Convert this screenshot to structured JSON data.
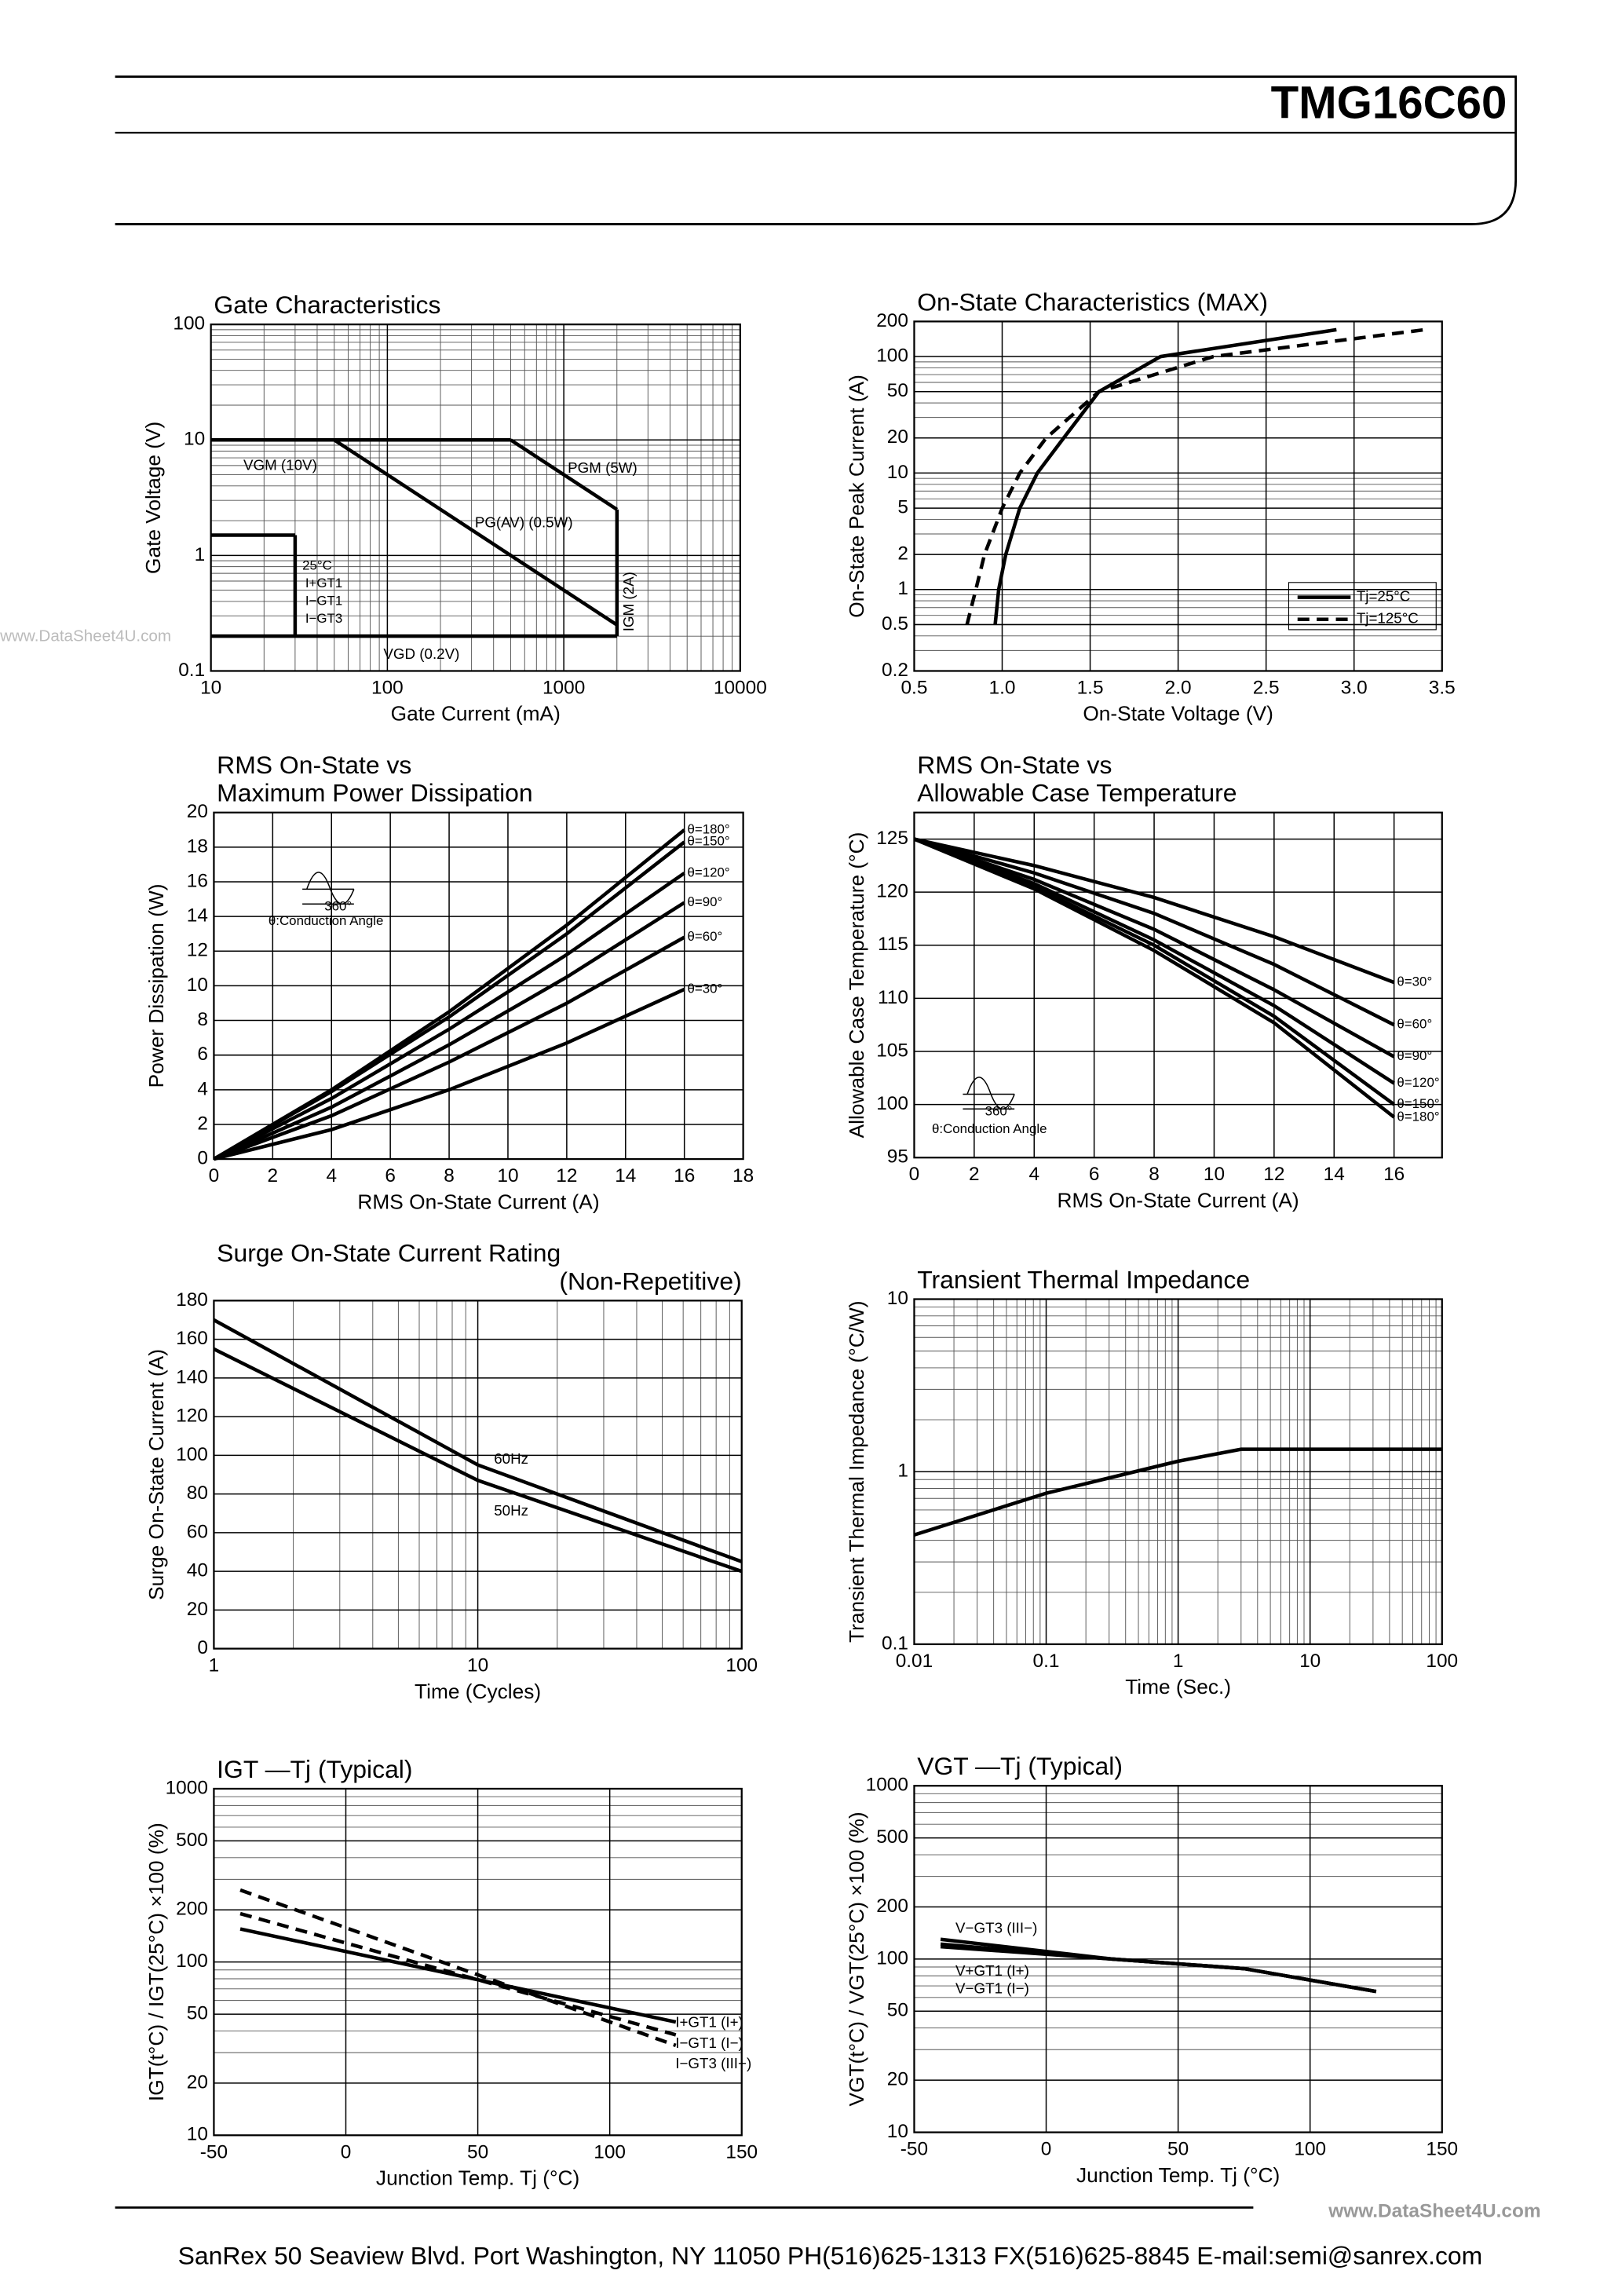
{
  "header": {
    "title": "TMG16C60"
  },
  "footer": {
    "address": "SanRex 50 Seaview Blvd. Port Washington, NY 11050 PH(516)625-1313 FX(516)625-8845 E-mail:semi@sanrex.com"
  },
  "watermark": {
    "left": "www.DataSheet4U.com",
    "bottom": "www.DataSheet4U.com"
  },
  "chart_data": [
    {
      "type": "line",
      "title": "Gate Characteristics",
      "x_label": "Gate Current (mA)",
      "y_label": "Gate Voltage (V)",
      "xscale": "log",
      "yscale": "log",
      "grid": true,
      "xlim": [
        10,
        10000
      ],
      "ylim": [
        0.1,
        100
      ],
      "xticks": [
        10,
        100,
        1000,
        10000
      ],
      "yticks": [
        0.1,
        1,
        10,
        100
      ],
      "series": [
        {
          "name": "VGM (10V)",
          "color": "#000000",
          "x": [
            10,
            500
          ],
          "values": [
            10,
            10
          ]
        },
        {
          "name": "PGM (5W)",
          "color": "#000000",
          "x": [
            500,
            2000
          ],
          "values": [
            10,
            2.5
          ]
        },
        {
          "name": "PG(AV) (0.5W)",
          "color": "#000000",
          "x": [
            50,
            2000
          ],
          "values": [
            10,
            0.25
          ]
        },
        {
          "name": "IGM (2A)",
          "color": "#000000",
          "x": [
            2000,
            2000
          ],
          "values": [
            2.5,
            0.2
          ]
        },
        {
          "name": "VGD (0.2V)",
          "color": "#000000",
          "x": [
            10,
            2000
          ],
          "values": [
            0.2,
            0.2
          ]
        },
        {
          "color": "#000000",
          "x": [
            10,
            30
          ],
          "values": [
            1.5,
            1.5
          ]
        },
        {
          "color": "#000000",
          "x": [
            30,
            30
          ],
          "values": [
            1.5,
            0.2
          ]
        }
      ],
      "annotations": [
        "25°C",
        "I+GT1",
        "I−GT1",
        "I−GT3"
      ]
    },
    {
      "type": "line",
      "title": "On-State Characteristics (MAX)",
      "x_label": "On-State Voltage (V)",
      "y_label": "On-State Peak Current (A)",
      "yscale": "log",
      "grid": true,
      "xlim": [
        0.5,
        3.5
      ],
      "ylim": [
        0.2,
        200
      ],
      "xticks": [
        0.5,
        {
          "value": 1,
          "label": "1.0"
        },
        1.5,
        {
          "value": 2,
          "label": "2.0"
        },
        2.5,
        {
          "value": 3,
          "label": "3.0"
        },
        3.5
      ],
      "yticks": [
        0.2,
        0.5,
        1,
        2,
        5,
        10,
        20,
        50,
        100,
        200
      ],
      "legend": "lower right",
      "series": [
        {
          "name": "Tj=25°C",
          "color": "#000000",
          "style": "solid",
          "x": [
            0.96,
            0.98,
            1.02,
            1.1,
            1.2,
            1.35,
            1.55,
            1.9,
            2.9
          ],
          "values": [
            0.5,
            1,
            2,
            5,
            10,
            20,
            50,
            100,
            170
          ]
        },
        {
          "name": "Tj=125°C",
          "color": "#000000",
          "style": "dashed",
          "x": [
            0.8,
            0.85,
            0.9,
            1.0,
            1.1,
            1.25,
            1.55,
            2.2,
            3.4
          ],
          "values": [
            0.5,
            1,
            2,
            5,
            10,
            20,
            50,
            100,
            170
          ]
        }
      ]
    },
    {
      "type": "line",
      "title": [
        "RMS On-State vs",
        "Maximum Power Dissipation"
      ],
      "x_label": "RMS On-State Current (A)",
      "y_label": "Power Dissipation (W)",
      "grid": true,
      "xlim": [
        0,
        18
      ],
      "ylim": [
        0,
        20
      ],
      "xticks": [
        0,
        2,
        4,
        6,
        8,
        10,
        12,
        14,
        16,
        18
      ],
      "yticks": [
        0,
        2,
        4,
        6,
        8,
        10,
        12,
        14,
        16,
        18,
        20
      ],
      "series": [
        {
          "name": "θ=180°",
          "color": "#000000",
          "x": [
            0,
            4,
            8,
            12,
            16
          ],
          "values": [
            0,
            4.0,
            8.5,
            13.5,
            19.0
          ]
        },
        {
          "name": "θ=150°",
          "color": "#000000",
          "x": [
            0,
            4,
            8,
            12,
            16
          ],
          "values": [
            0,
            3.9,
            8.2,
            13.0,
            18.3
          ]
        },
        {
          "name": "θ=120°",
          "color": "#000000",
          "x": [
            0,
            4,
            8,
            12,
            16
          ],
          "values": [
            0,
            3.5,
            7.5,
            11.8,
            16.5
          ]
        },
        {
          "name": "θ=90°",
          "color": "#000000",
          "x": [
            0,
            4,
            8,
            12,
            16
          ],
          "values": [
            0,
            3.0,
            6.6,
            10.5,
            14.8
          ]
        },
        {
          "name": "θ=60°",
          "color": "#000000",
          "x": [
            0,
            4,
            8,
            12,
            16
          ],
          "values": [
            0,
            2.5,
            5.6,
            9.0,
            12.8
          ]
        },
        {
          "name": "θ=30°",
          "color": "#000000",
          "x": [
            0,
            4,
            8,
            12,
            16
          ],
          "values": [
            0,
            1.7,
            4.0,
            6.7,
            9.8
          ]
        }
      ],
      "annotations": [
        "360°",
        "θ:Conduction Angle"
      ]
    },
    {
      "type": "line",
      "title": [
        "RMS On-State vs",
        "Allowable Case Temperature"
      ],
      "x_label": "RMS On-State Current (A)",
      "y_label": "Allowable Case Temperature (°C)",
      "grid": true,
      "xlim": [
        0,
        17.6
      ],
      "ylim": [
        95,
        127.5
      ],
      "xticks": [
        0,
        2,
        4,
        6,
        8,
        10,
        12,
        14,
        16
      ],
      "yticks": [
        95,
        100,
        105,
        110,
        115,
        120,
        125
      ],
      "series": [
        {
          "name": "θ=30°",
          "color": "#000000",
          "x": [
            0,
            4,
            8,
            12,
            16
          ],
          "values": [
            125,
            122.5,
            119.5,
            115.8,
            111.5
          ]
        },
        {
          "name": "θ=60°",
          "color": "#000000",
          "x": [
            0,
            4,
            8,
            12,
            16
          ],
          "values": [
            125,
            121.8,
            118,
            113.2,
            107.5
          ]
        },
        {
          "name": "θ=90°",
          "color": "#000000",
          "x": [
            0,
            4,
            8,
            12,
            16
          ],
          "values": [
            125,
            121.2,
            116.5,
            110.8,
            104.5
          ]
        },
        {
          "name": "θ=120°",
          "color": "#000000",
          "x": [
            0,
            4,
            8,
            12,
            16
          ],
          "values": [
            125,
            120.8,
            115.5,
            109.3,
            102
          ]
        },
        {
          "name": "θ=150°",
          "color": "#000000",
          "x": [
            0,
            4,
            8,
            12,
            16
          ],
          "values": [
            125,
            120.5,
            115,
            108.3,
            100
          ]
        },
        {
          "name": "θ=180°",
          "color": "#000000",
          "x": [
            0,
            4,
            8,
            12,
            16
          ],
          "values": [
            125,
            120.3,
            114.5,
            107.7,
            98.8
          ]
        }
      ],
      "annotations": [
        "360°",
        "θ:Conduction Angle"
      ]
    },
    {
      "type": "line",
      "title": [
        "Surge On-State Current Rating",
        "(Non-Repetitive)"
      ],
      "x_label": "Time (Cycles)",
      "y_label": "Surge On-State Current (A)",
      "xscale": "log",
      "grid": true,
      "xlim": [
        1,
        100
      ],
      "ylim": [
        0,
        180
      ],
      "xticks": [
        1,
        10,
        100
      ],
      "yticks": [
        0,
        20,
        40,
        60,
        80,
        100,
        120,
        140,
        160,
        180
      ],
      "series": [
        {
          "name": "60Hz",
          "color": "#000000",
          "x": [
            1,
            10,
            100
          ],
          "values": [
            170,
            95,
            45
          ]
        },
        {
          "name": "50Hz",
          "color": "#000000",
          "x": [
            1,
            10,
            100
          ],
          "values": [
            155,
            87,
            40
          ]
        }
      ]
    },
    {
      "type": "line",
      "title": "Transient Thermal Impedance",
      "x_label": "Time (Sec.)",
      "y_label": "Transient Thermal Impedance (°C/W)",
      "xscale": "log",
      "yscale": "log",
      "grid": true,
      "xlim": [
        0.01,
        100
      ],
      "ylim": [
        0.1,
        10
      ],
      "xticks": [
        0.01,
        0.1,
        1,
        10,
        100
      ],
      "yticks": [
        0.1,
        1,
        10
      ],
      "series": [
        {
          "color": "#000000",
          "x": [
            0.01,
            0.1,
            1,
            3,
            100
          ],
          "values": [
            0.43,
            0.75,
            1.15,
            1.35,
            1.35
          ]
        }
      ]
    },
    {
      "type": "line",
      "title": "IGT —Tj (Typical)",
      "x_label": "Junction Temp. Tj (°C)",
      "y_label": "IGT(t°C) / IGT(25°C) ×100 (%)",
      "yscale": "log",
      "grid": true,
      "xlim": [
        -50,
        150
      ],
      "ylim": [
        10,
        1000
      ],
      "xticks": [
        -50,
        0,
        50,
        100,
        150
      ],
      "yticks": [
        10,
        20,
        50,
        100,
        200,
        500,
        1000
      ],
      "series": [
        {
          "name": "I+GT1 (I+)",
          "color": "#000000",
          "style": "solid",
          "x": [
            -40,
            125
          ],
          "values": [
            155,
            45
          ]
        },
        {
          "name": "I−GT1 (I−)",
          "color": "#000000",
          "style": "dashed",
          "x": [
            -40,
            125
          ],
          "values": [
            190,
            38
          ]
        },
        {
          "name": "I−GT3 (III−)",
          "color": "#000000",
          "style": "dashed",
          "x": [
            -40,
            125
          ],
          "values": [
            260,
            33
          ]
        }
      ]
    },
    {
      "type": "line",
      "title": "VGT —Tj (Typical)",
      "x_label": "Junction Temp. Tj (°C)",
      "y_label": "VGT(t°C) / VGT(25°C) ×100 (%)",
      "yscale": "log",
      "grid": true,
      "xlim": [
        -50,
        150
      ],
      "ylim": [
        10,
        1000
      ],
      "xticks": [
        -50,
        0,
        50,
        100,
        150
      ],
      "yticks": [
        10,
        20,
        50,
        100,
        200,
        500,
        1000
      ],
      "series": [
        {
          "name": "V−GT3 (III−)",
          "color": "#000000",
          "x": [
            -40,
            25,
            75,
            125
          ],
          "values": [
            130,
            100,
            88,
            65
          ]
        },
        {
          "name": "V+GT1 (I+)",
          "color": "#000000",
          "x": [
            -40,
            25,
            75,
            125
          ],
          "values": [
            122,
            100,
            88,
            65
          ]
        },
        {
          "name": "V−GT1 (I−)",
          "color": "#000000",
          "x": [
            -40,
            25,
            75,
            125
          ],
          "values": [
            118,
            100,
            88,
            65
          ]
        }
      ]
    }
  ]
}
